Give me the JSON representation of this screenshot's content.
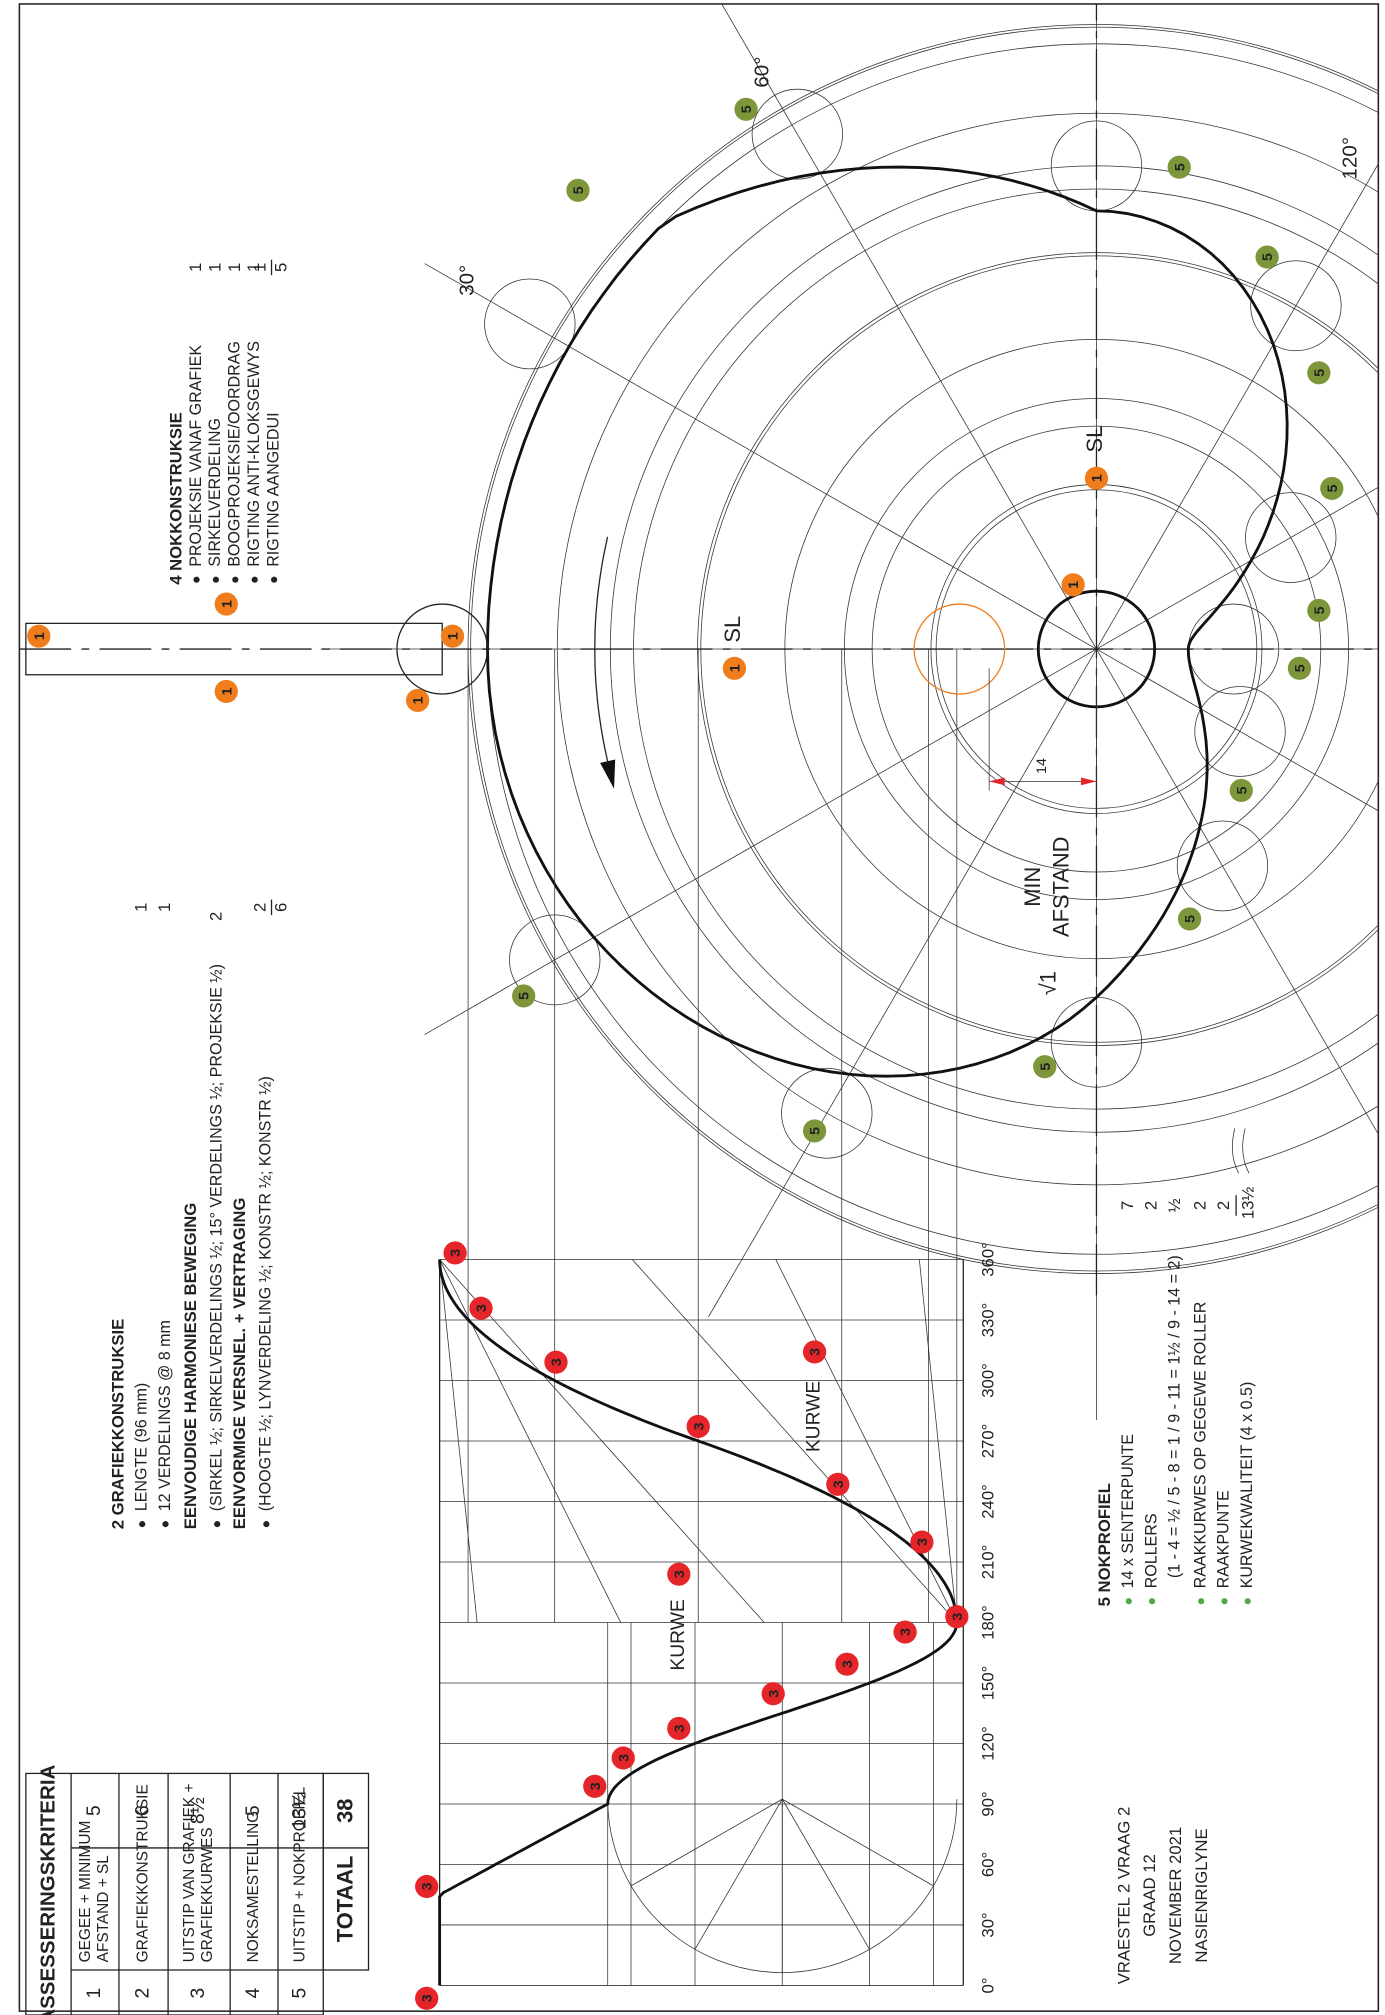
{
  "table": {
    "title": "ASSESSERINGSKRITERIA",
    "rows": [
      {
        "number": "1",
        "criterion": [
          "GEGEE + MINIMUM",
          "AFSTAND + SL"
        ],
        "marks": "5"
      },
      {
        "number": "2",
        "criterion": [
          "GRAFIEKKONSTRUKSIE"
        ],
        "marks": "6"
      },
      {
        "number": "3",
        "criterion": [
          "UITSTIP VAN GRAFIEK +",
          "GRAFIEKKURWES"
        ],
        "marks": "8½"
      },
      {
        "number": "4",
        "criterion": [
          "NOKSAMESTELLING"
        ],
        "marks": "5"
      },
      {
        "number": "5",
        "criterion": [
          "UITSTIP + NOKPROFIEL"
        ],
        "marks": "13½"
      }
    ],
    "total_label": "TOTAAL",
    "total": "38"
  },
  "graph_section": {
    "heading": "2 GRAFIEKKONSTRUKSIE",
    "items": [
      {
        "text": "LENGTE (96 mm)",
        "mark": "1"
      },
      {
        "text": "12 VERDELINGS @ 8 mm",
        "mark": "1"
      },
      {
        "text": "EENVOUDIGE HARMONIESE BEWEGING",
        "style": "bold"
      },
      {
        "text": "(SIRKEL ½; SIRKELVERDELINGS ½; 15° VERDELINGS ½; PROJEKSIE ½)",
        "mark": "2"
      },
      {
        "text": "EENVORMIGE VERSNEL. + VERTRAGING",
        "style": "bold"
      },
      {
        "text": "(HOOGTE ½; LYNVERDELING ½; KONSTR ½; KONSTR ½)",
        "mark": "2"
      }
    ],
    "total": "6"
  },
  "cam_section": {
    "heading": "4 NOKKONSTRUKSIE",
    "items": [
      {
        "text": "PROJEKSIE VANAF GRAFIEK",
        "mark": "1"
      },
      {
        "text": "SIRKELVERDELING",
        "mark": "1"
      },
      {
        "text": "BOOGPROJEKSIE/OORDRAG",
        "mark": "1"
      },
      {
        "text": "RIGTING ANTI-KLOKSGEWYS",
        "mark": "1"
      },
      {
        "text": "RIGTING AANGEDUI",
        "mark": "1"
      }
    ],
    "total": "5"
  },
  "profile_section": {
    "heading": "5 NOKPROFIEL",
    "items": [
      {
        "text": "14 x SENTERPUNTE",
        "mark": "7"
      },
      {
        "text": "ROLLERS",
        "mark": "2"
      },
      {
        "text": "(1 - 4 = ½ / 5 - 8 = 1 / 9 - 11 = 1½ / 9 - 14 = 2)",
        "style": "note",
        "mark": "½"
      },
      {
        "text": "RAAKKURWES OP GEGEWE ROLLER",
        "mark": "2"
      },
      {
        "text": "RAAKPUNTE",
        "mark": "2"
      },
      {
        "text": "KURWEKWALITEIT (4 x 0.5)"
      }
    ],
    "total": "13½"
  },
  "graph": {
    "angles": [
      "0°",
      "30°",
      "60°",
      "90°",
      "120°",
      "150°",
      "180°",
      "210°",
      "240°",
      "270°",
      "300°",
      "330°",
      "360°"
    ],
    "curve_labels": [
      {
        "text": "KURWE",
        "marker": "3"
      },
      {
        "text": "KURWE",
        "marker": "3"
      }
    ]
  },
  "cam": {
    "angles": [
      "30°",
      "60°",
      "120°"
    ],
    "sl_labels": [
      {
        "marker": "1",
        "text": "SL"
      },
      {
        "marker": "1",
        "text": "SL"
      }
    ],
    "min_distance": [
      "MIN",
      "AFSTAND"
    ],
    "check": "√1",
    "dimension": "14"
  },
  "markers": [
    "3",
    "3",
    "3",
    "3",
    "3",
    "3",
    "3",
    "3",
    "3",
    "3",
    "3",
    "3",
    "3",
    "3",
    "3",
    "1",
    "1",
    "1",
    "1",
    "1",
    "1",
    "5",
    "5",
    "5",
    "5",
    "5",
    "5",
    "5",
    "5",
    "5",
    "5",
    "5",
    "5",
    "5"
  ],
  "footer": [
    "VRAESTEL 2 VRAAG 2",
    "GRAAD 12",
    "NOVEMBER 2021",
    "NASIENRIGLYNE"
  ]
}
